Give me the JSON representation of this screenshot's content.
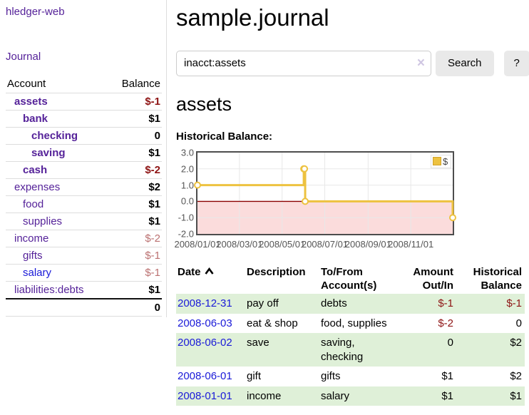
{
  "sidebar": {
    "app_title": "hledger-web",
    "journal_link": "Journal",
    "accounts": {
      "col_account": "Account",
      "col_balance": "Balance",
      "rows": [
        {
          "name": "assets",
          "depth": 1,
          "bold": true,
          "balance": "$-1",
          "balance_style": "neg-strong"
        },
        {
          "name": "bank",
          "depth": 2,
          "bold": true,
          "balance": "$1",
          "balance_style": "pos"
        },
        {
          "name": "checking",
          "depth": 3,
          "bold": true,
          "balance": "0",
          "balance_style": "pos"
        },
        {
          "name": "saving",
          "depth": 3,
          "bold": true,
          "balance": "$1",
          "balance_style": "pos"
        },
        {
          "name": "cash",
          "depth": 2,
          "bold": true,
          "balance": "$-2",
          "balance_style": "neg-strong"
        },
        {
          "name": "expenses",
          "depth": 1,
          "bold": false,
          "balance": "$2",
          "balance_style": "pos"
        },
        {
          "name": "food",
          "depth": 2,
          "bold": false,
          "balance": "$1",
          "balance_style": "pos"
        },
        {
          "name": "supplies",
          "depth": 2,
          "bold": false,
          "balance": "$1",
          "balance_style": "pos"
        },
        {
          "name": "income",
          "depth": 1,
          "bold": false,
          "balance": "$-2",
          "balance_style": "neg-soft"
        },
        {
          "name": "gifts",
          "depth": 2,
          "bold": false,
          "balance": "$-1",
          "balance_style": "neg-soft"
        },
        {
          "name": "salary",
          "depth": 2,
          "bold": false,
          "balance": "$-1",
          "balance_style": "neg-soft",
          "blue": true
        },
        {
          "name": "liabilities:debts",
          "depth": 1,
          "bold": false,
          "balance": "$1",
          "balance_style": "pos"
        }
      ],
      "total": "0"
    }
  },
  "main": {
    "title": "sample.journal",
    "search": {
      "value": "inacct:assets",
      "clear_icon": "×",
      "button_label": "Search",
      "help_label": "?"
    },
    "account_heading": "assets",
    "chart_label": "Historical Balance:"
  },
  "chart_data": {
    "type": "line",
    "step": true,
    "title": "Historical Balance",
    "legend": "$",
    "legend_position": "top-right",
    "series": [
      {
        "name": "$",
        "color": "#edc240",
        "points": [
          [
            "2008-01-01",
            1
          ],
          [
            "2008-06-01",
            2
          ],
          [
            "2008-06-02",
            2
          ],
          [
            "2008-06-03",
            0
          ],
          [
            "2008-12-31",
            -1
          ]
        ]
      }
    ],
    "x_tick_dates": [
      "2008-01-01",
      "2008-03-01",
      "2008-05-01",
      "2008-07-01",
      "2008-09-01",
      "2008-11-01"
    ],
    "x_tick_labels": [
      "2008/01/01",
      "2008/03/01",
      "2008/05/01",
      "2008/07/01",
      "2008/09/01",
      "2008/11/01"
    ],
    "y_ticks": [
      3.0,
      2.0,
      1.0,
      0.0,
      -1.0,
      -2.0
    ],
    "ylim": [
      -2,
      3
    ],
    "x_start": "2008-01-01",
    "x_span_days": 365,
    "grid": true,
    "negative_region_color": "#fbdcdc",
    "zero_line_color": "#8b0000",
    "plot_border_color": "#4d4d4d",
    "gridline_color": "#e8e8e8"
  },
  "register": {
    "headers": {
      "date": "Date",
      "description": "Description",
      "account": "To/From Account(s)",
      "amount": "Amount Out/In",
      "balance": "Historical Balance"
    },
    "rows": [
      {
        "date": "2008-12-31",
        "description": "pay off",
        "account": "debts",
        "amount": "$-1",
        "amount_neg": true,
        "balance": "$-1",
        "balance_neg": true
      },
      {
        "date": "2008-06-03",
        "description": "eat & shop",
        "account": "food, supplies",
        "amount": "$-2",
        "amount_neg": true,
        "balance": "0",
        "balance_neg": false
      },
      {
        "date": "2008-06-02",
        "description": "save",
        "account": "saving, checking",
        "amount": "0",
        "amount_neg": false,
        "balance": "$2",
        "balance_neg": false
      },
      {
        "date": "2008-06-01",
        "description": "gift",
        "account": "gifts",
        "amount": "$1",
        "amount_neg": false,
        "balance": "$2",
        "balance_neg": false
      },
      {
        "date": "2008-01-01",
        "description": "income",
        "account": "salary",
        "amount": "$1",
        "amount_neg": false,
        "balance": "$1",
        "balance_neg": false
      }
    ]
  }
}
